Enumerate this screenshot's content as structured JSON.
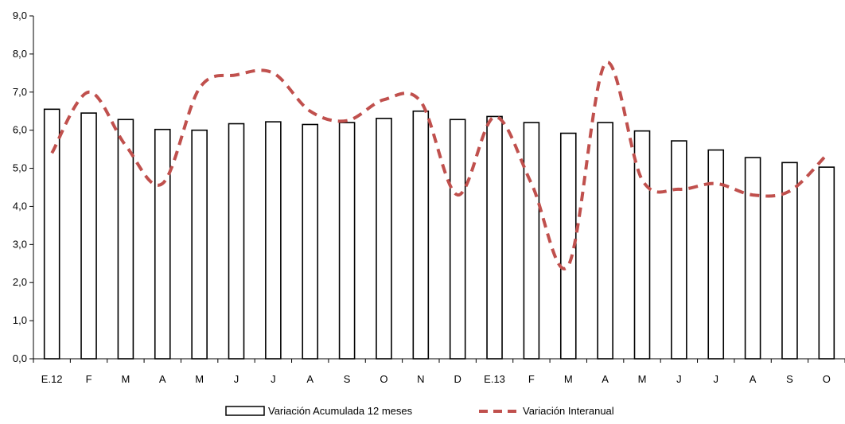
{
  "chart_data": {
    "type": "bar",
    "categories": [
      "E.12",
      "F",
      "M",
      "A",
      "M",
      "J",
      "J",
      "A",
      "S",
      "O",
      "N",
      "D",
      "E.13",
      "F",
      "M",
      "A",
      "M",
      "J",
      "J",
      "A",
      "S",
      "O"
    ],
    "series": [
      {
        "name": "Variación Acumulada 12 meses",
        "type": "bar",
        "values": [
          6.55,
          6.45,
          6.28,
          6.02,
          6.0,
          6.17,
          6.22,
          6.15,
          6.2,
          6.31,
          6.5,
          6.28,
          6.36,
          6.2,
          5.92,
          6.2,
          5.98,
          5.72,
          5.48,
          5.28,
          5.15,
          5.03
        ],
        "color": "#000000"
      },
      {
        "name": "Variación Interanual",
        "type": "line",
        "values": [
          5.4,
          7.0,
          5.6,
          4.6,
          7.1,
          7.45,
          7.5,
          6.5,
          6.25,
          6.8,
          6.75,
          4.3,
          6.35,
          4.6,
          2.45,
          7.75,
          4.7,
          4.45,
          4.6,
          4.3,
          4.4,
          5.35
        ],
        "color": "#C0504D"
      }
    ],
    "y_ticks": [
      "0,0",
      "1,0",
      "2,0",
      "3,0",
      "4,0",
      "5,0",
      "6,0",
      "7,0",
      "8,0",
      "9,0"
    ],
    "ylim": [
      0,
      9
    ],
    "legend_position": "bottom"
  }
}
